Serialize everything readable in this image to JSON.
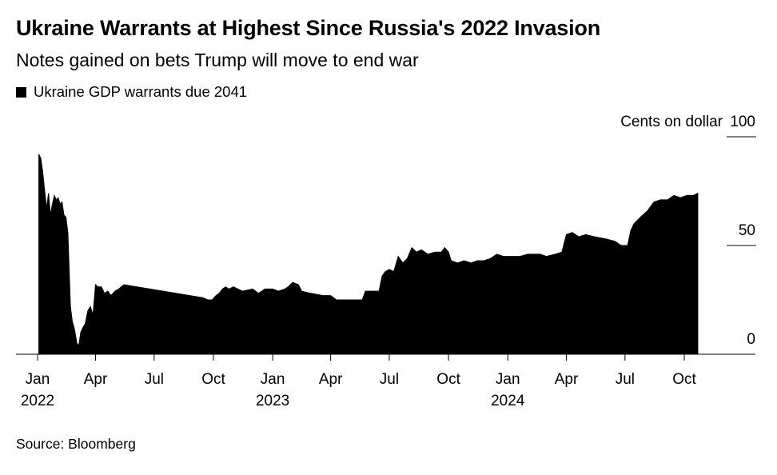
{
  "title": "Ukraine Warrants at Highest Since Russia's 2022 Invasion",
  "subtitle": "Notes gained on bets Trump will move to end war",
  "source": "Source: Bloomberg",
  "chart_data": {
    "type": "area",
    "legend": [
      {
        "name": "Ukraine GDP warrants due 2041",
        "color": "#000000"
      }
    ],
    "ylabel": "Cents on dollar",
    "ylim": [
      0,
      100
    ],
    "yticks": [
      0,
      50,
      100
    ],
    "xlim": [
      "2022-01-01",
      "2024-12-31"
    ],
    "xticks": [
      {
        "date": "2022-01-01",
        "label": "Jan",
        "year": "2022"
      },
      {
        "date": "2022-04-01",
        "label": "Apr",
        "year": ""
      },
      {
        "date": "2022-07-01",
        "label": "Jul",
        "year": ""
      },
      {
        "date": "2022-10-01",
        "label": "Oct",
        "year": ""
      },
      {
        "date": "2023-01-01",
        "label": "Jan",
        "year": "2023"
      },
      {
        "date": "2023-04-01",
        "label": "Apr",
        "year": ""
      },
      {
        "date": "2023-07-01",
        "label": "Jul",
        "year": ""
      },
      {
        "date": "2023-10-01",
        "label": "Oct",
        "year": ""
      },
      {
        "date": "2024-01-01",
        "label": "Jan",
        "year": "2024"
      },
      {
        "date": "2024-04-01",
        "label": "Apr",
        "year": ""
      },
      {
        "date": "2024-07-01",
        "label": "Jul",
        "year": ""
      },
      {
        "date": "2024-10-01",
        "label": "Oct",
        "year": ""
      }
    ],
    "grid": false,
    "series": [
      {
        "name": "Ukraine GDP warrants due 2041",
        "color": "#000000",
        "points": [
          [
            "2022-01-03",
            92
          ],
          [
            "2022-01-06",
            90
          ],
          [
            "2022-01-09",
            84
          ],
          [
            "2022-01-12",
            75
          ],
          [
            "2022-01-15",
            67
          ],
          [
            "2022-01-18",
            74
          ],
          [
            "2022-01-21",
            64
          ],
          [
            "2022-01-24",
            69
          ],
          [
            "2022-01-27",
            73
          ],
          [
            "2022-01-30",
            71
          ],
          [
            "2022-02-02",
            72
          ],
          [
            "2022-02-05",
            69
          ],
          [
            "2022-02-08",
            70
          ],
          [
            "2022-02-11",
            64
          ],
          [
            "2022-02-14",
            63
          ],
          [
            "2022-02-17",
            56
          ],
          [
            "2022-02-21",
            22
          ],
          [
            "2022-02-24",
            15
          ],
          [
            "2022-02-27",
            12
          ],
          [
            "2022-03-03",
            5
          ],
          [
            "2022-03-06",
            4
          ],
          [
            "2022-03-09",
            10
          ],
          [
            "2022-03-12",
            12
          ],
          [
            "2022-03-16",
            14
          ],
          [
            "2022-03-20",
            20
          ],
          [
            "2022-03-24",
            22
          ],
          [
            "2022-03-28",
            18
          ],
          [
            "2022-04-01",
            32
          ],
          [
            "2022-04-05",
            31
          ],
          [
            "2022-04-10",
            31
          ],
          [
            "2022-04-15",
            28
          ],
          [
            "2022-04-20",
            29
          ],
          [
            "2022-04-25",
            27
          ],
          [
            "2022-05-01",
            29
          ],
          [
            "2022-05-07",
            30
          ],
          [
            "2022-05-15",
            32
          ],
          [
            "2022-09-15",
            26
          ],
          [
            "2022-09-22",
            25
          ],
          [
            "2022-09-29",
            25
          ],
          [
            "2022-10-05",
            27
          ],
          [
            "2022-10-10",
            28
          ],
          [
            "2022-10-15",
            30
          ],
          [
            "2022-10-20",
            31
          ],
          [
            "2022-10-25",
            30
          ],
          [
            "2022-11-01",
            31
          ],
          [
            "2022-11-15",
            29
          ],
          [
            "2022-12-01",
            30
          ],
          [
            "2022-12-10",
            28
          ],
          [
            "2022-12-20",
            30
          ],
          [
            "2023-01-01",
            30
          ],
          [
            "2023-01-10",
            29
          ],
          [
            "2023-01-20",
            30
          ],
          [
            "2023-01-25",
            31
          ],
          [
            "2023-02-01",
            33
          ],
          [
            "2023-02-10",
            32
          ],
          [
            "2023-02-15",
            29
          ],
          [
            "2023-03-01",
            28
          ],
          [
            "2023-03-20",
            27
          ],
          [
            "2023-04-01",
            27
          ],
          [
            "2023-04-10",
            25
          ],
          [
            "2023-05-01",
            25
          ],
          [
            "2023-05-20",
            25
          ],
          [
            "2023-05-25",
            29
          ],
          [
            "2023-06-15",
            29
          ],
          [
            "2023-06-20",
            36
          ],
          [
            "2023-06-25",
            38
          ],
          [
            "2023-07-01",
            39
          ],
          [
            "2023-07-08",
            38
          ],
          [
            "2023-07-15",
            45
          ],
          [
            "2023-07-22",
            42
          ],
          [
            "2023-07-29",
            44
          ],
          [
            "2023-08-05",
            49
          ],
          [
            "2023-08-12",
            47
          ],
          [
            "2023-08-20",
            48
          ],
          [
            "2023-08-30",
            46
          ],
          [
            "2023-09-10",
            47
          ],
          [
            "2023-09-20",
            47
          ],
          [
            "2023-09-25",
            49
          ],
          [
            "2023-10-01",
            47
          ],
          [
            "2023-10-05",
            43
          ],
          [
            "2023-10-15",
            42
          ],
          [
            "2023-10-25",
            43
          ],
          [
            "2023-11-05",
            42
          ],
          [
            "2023-11-15",
            43
          ],
          [
            "2023-11-25",
            43
          ],
          [
            "2023-12-05",
            44
          ],
          [
            "2023-12-15",
            46
          ],
          [
            "2023-12-25",
            45
          ],
          [
            "2024-01-05",
            45
          ],
          [
            "2024-01-20",
            45
          ],
          [
            "2024-02-01",
            46
          ],
          [
            "2024-02-10",
            46
          ],
          [
            "2024-02-20",
            46
          ],
          [
            "2024-03-01",
            45
          ],
          [
            "2024-03-15",
            46
          ],
          [
            "2024-03-25",
            47
          ],
          [
            "2024-04-01",
            55
          ],
          [
            "2024-04-10",
            56
          ],
          [
            "2024-04-20",
            54
          ],
          [
            "2024-05-01",
            55
          ],
          [
            "2024-05-15",
            54
          ],
          [
            "2024-06-01",
            53
          ],
          [
            "2024-06-15",
            52
          ],
          [
            "2024-06-25",
            50
          ],
          [
            "2024-07-05",
            50
          ],
          [
            "2024-07-10",
            57
          ],
          [
            "2024-07-15",
            60
          ],
          [
            "2024-07-25",
            63
          ],
          [
            "2024-08-05",
            66
          ],
          [
            "2024-08-15",
            70
          ],
          [
            "2024-08-25",
            71
          ],
          [
            "2024-09-05",
            71
          ],
          [
            "2024-09-15",
            73
          ],
          [
            "2024-09-25",
            72
          ],
          [
            "2024-10-05",
            73
          ],
          [
            "2024-10-15",
            73
          ],
          [
            "2024-10-22",
            74
          ]
        ]
      }
    ]
  }
}
